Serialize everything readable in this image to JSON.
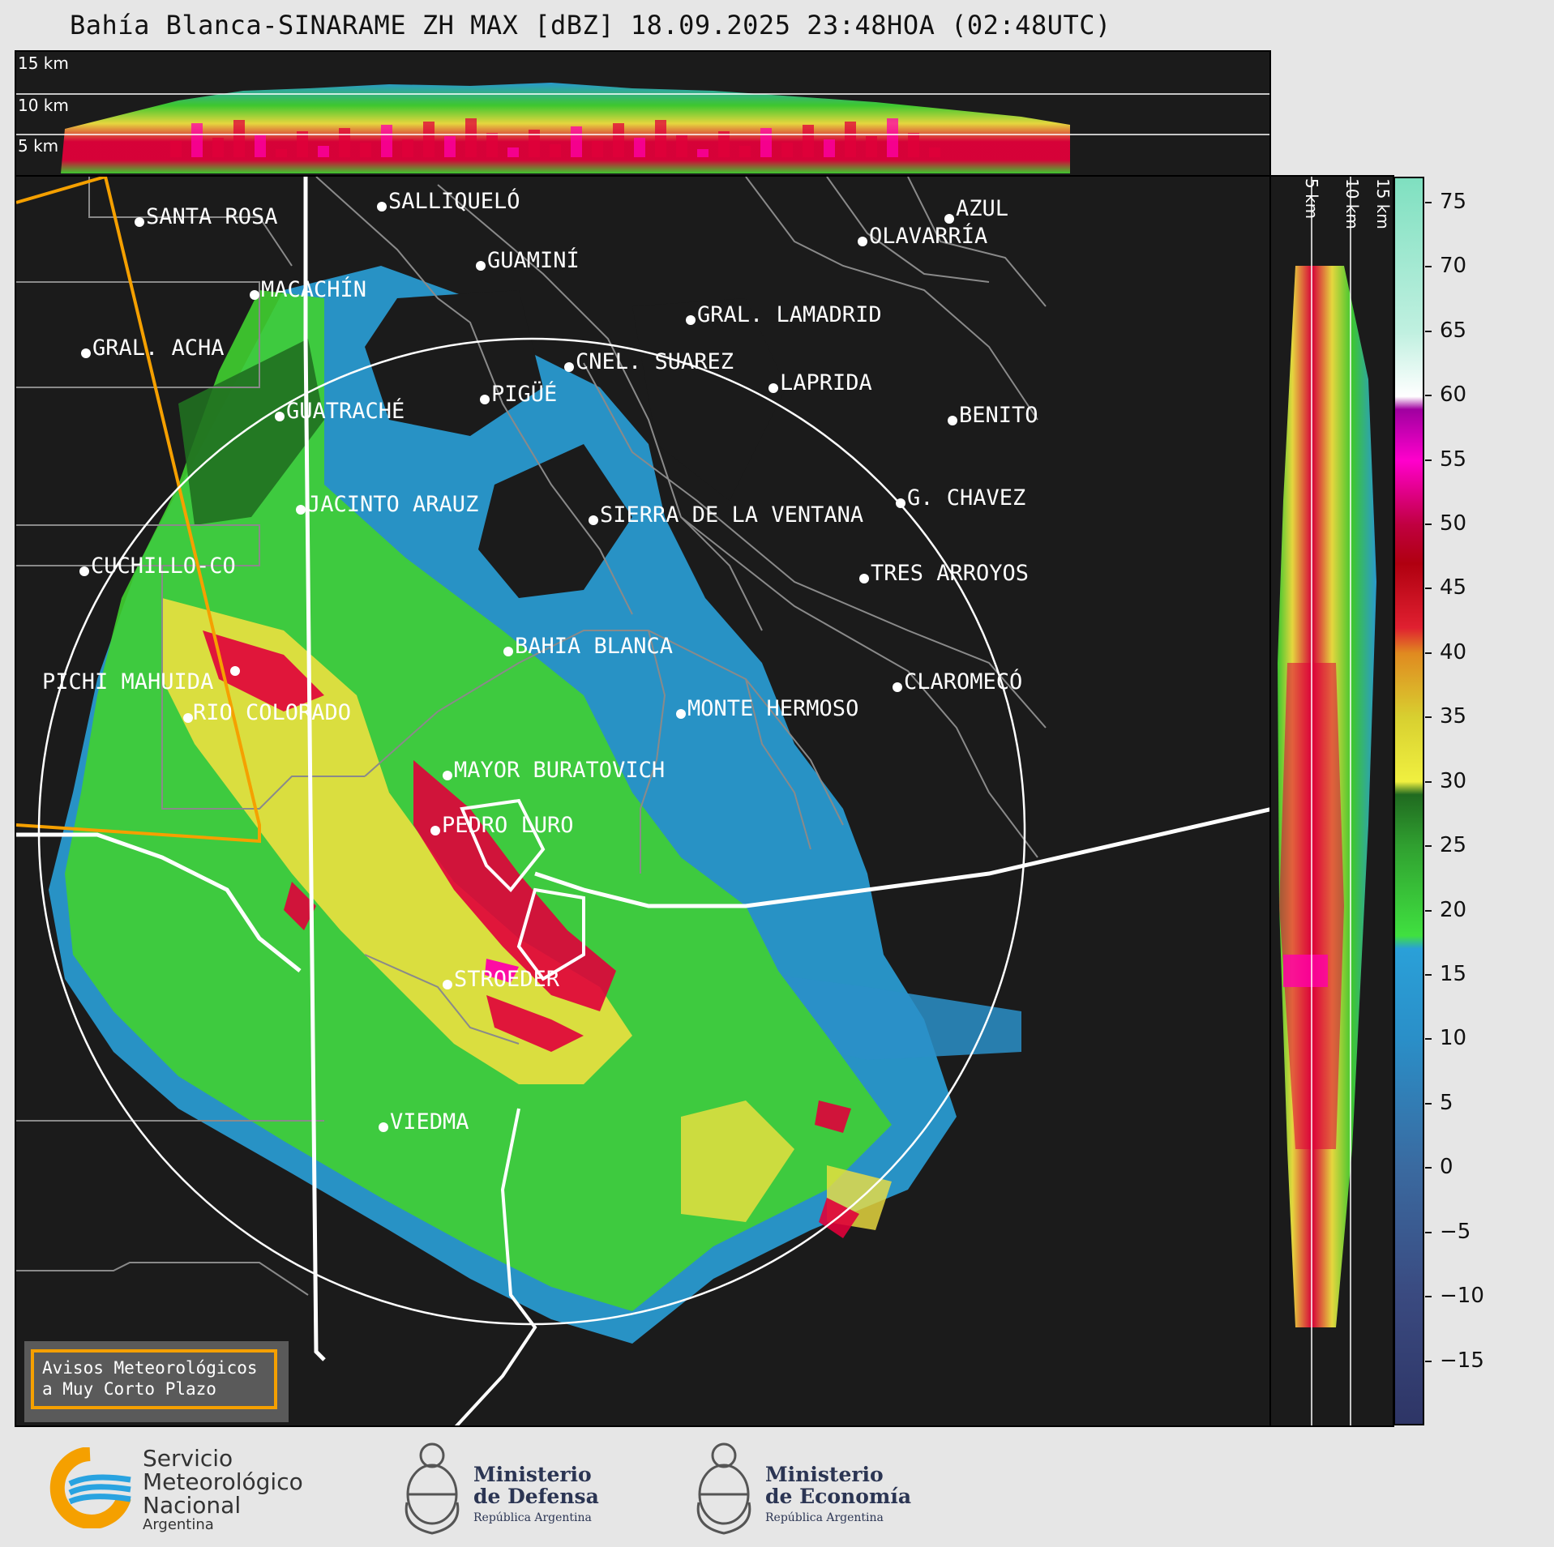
{
  "title": "Bahía Blanca-SINARAME ZH MAX [dBZ] 18.09.2025 23:48HOA (02:48UTC)",
  "top_profile": {
    "height_labels": [
      "15 km",
      "10 km",
      "5 km"
    ]
  },
  "right_profile": {
    "height_labels": [
      "5 km",
      "10 km",
      "15 km"
    ]
  },
  "cities": [
    "SANTA ROSA",
    "SALLIQUELÓ",
    "GUAMINÍ",
    "AZUL",
    "OLAVARRÍA",
    "MACACHÍN",
    "GRAL. LAMADRID",
    "GRAL. ACHA",
    "CNEL. SUAREZ",
    "LAPRIDA",
    "PIGÜÉ",
    "GUATRACHÉ",
    "BENITO",
    "G. CHAVEZ",
    "JACINTO ARAUZ",
    "SIERRA DE LA VENTANA",
    "CUCHILLO-CO",
    "TRES ARROYOS",
    "BAHIA BLANCA",
    "CLAROMECÓ",
    "PICHI MAHUIDA",
    "MONTE HERMOSO",
    "RIO COLORADO",
    "MAYOR BURATOVICH",
    "PEDRO LURO",
    "STROEDER",
    "VIEDMA"
  ],
  "colorbar": {
    "unit": "dBZ",
    "ticks": [
      "75",
      "70",
      "65",
      "60",
      "55",
      "50",
      "45",
      "40",
      "35",
      "30",
      "25",
      "20",
      "15",
      "10",
      "5",
      "0",
      "−5",
      "−10",
      "−15"
    ],
    "range": [
      -20,
      77
    ],
    "colors": {
      "strong": "#ff00aa",
      "red": "#e0003a",
      "orange": "#f0a020",
      "yellow": "#f0e040",
      "green": "#40d030",
      "darkgreen": "#207020",
      "blue": "#2aa0d8",
      "navy": "#3a4a80",
      "mint": "#7fe0c0"
    }
  },
  "notice": {
    "line1": "Avisos Meteorológicos",
    "line2": "a Muy Corto Plazo"
  },
  "logos": {
    "smn": {
      "line1": "Servicio",
      "line2": "Meteorológico",
      "line3": "Nacional",
      "line4": "Argentina"
    },
    "defensa": {
      "line1": "Ministerio",
      "line2": "de Defensa",
      "line3": "República Argentina"
    },
    "economia": {
      "line1": "Ministerio",
      "line2": "de Economía",
      "line3": "República Argentina"
    }
  }
}
